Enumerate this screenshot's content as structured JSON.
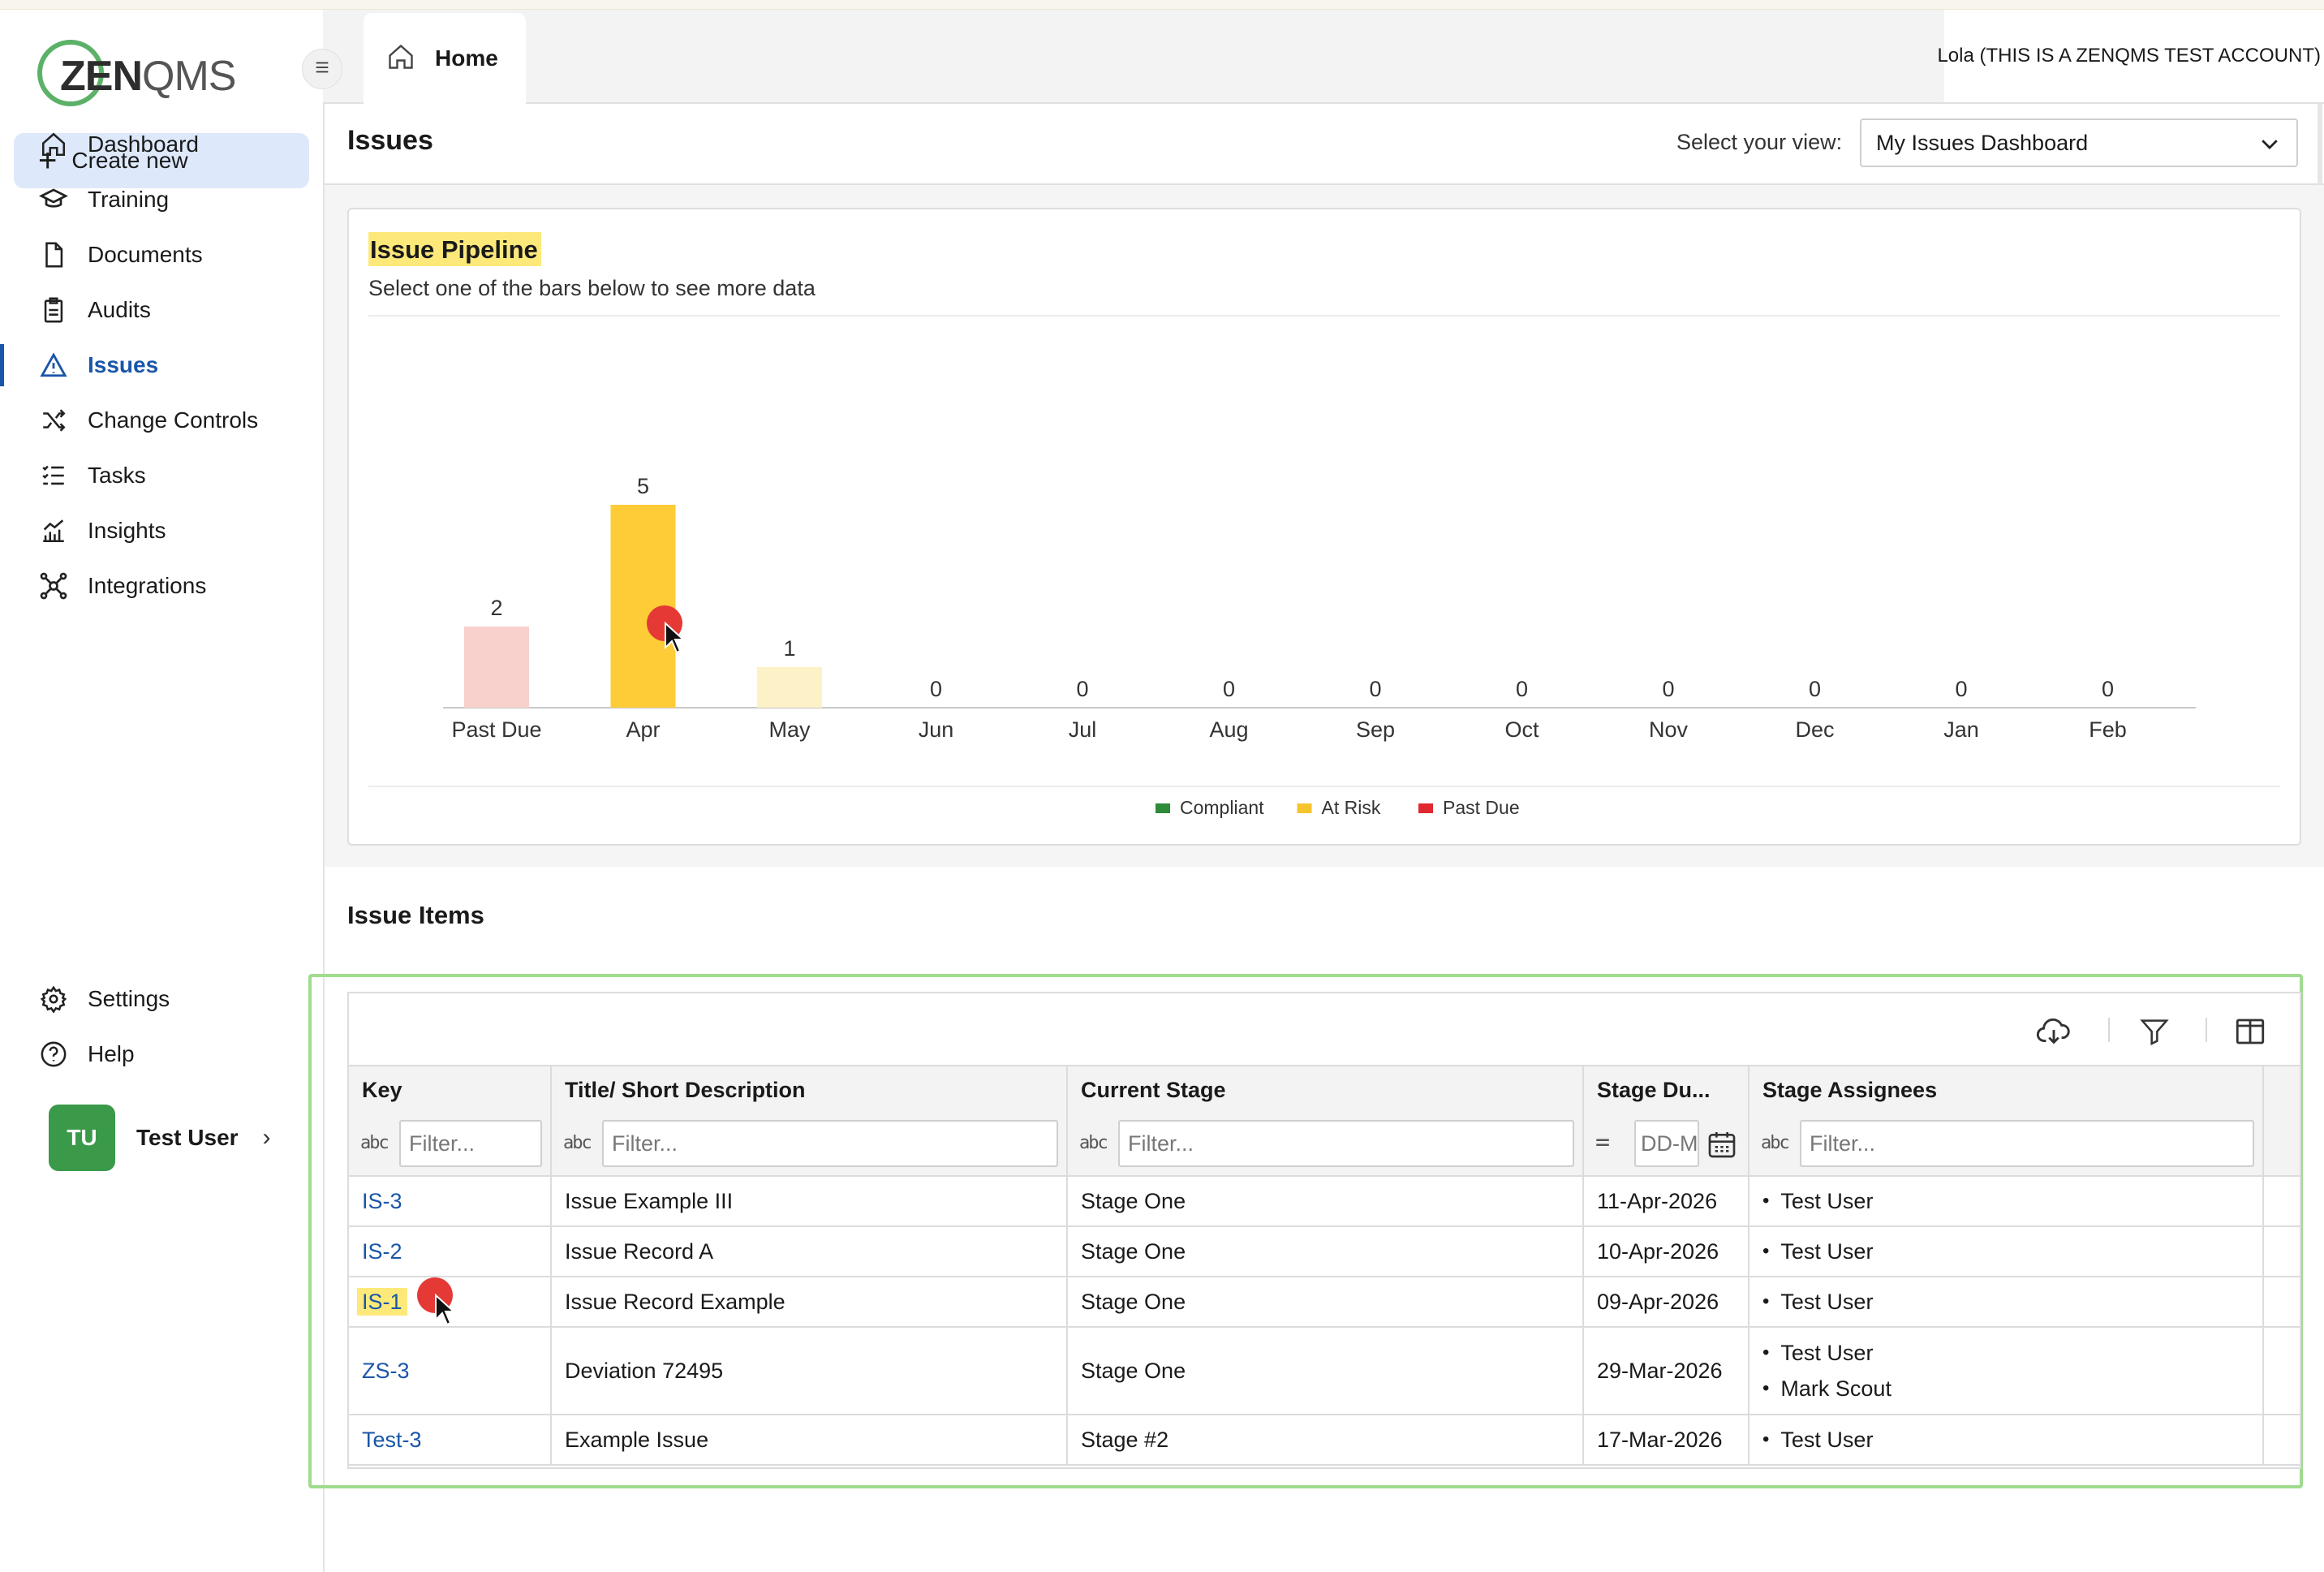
{
  "app": {
    "logo_text_1": "ZEN",
    "logo_text_2": "QMS",
    "account_label": "Lola (THIS IS A ZENQMS TEST ACCOUNT)"
  },
  "sidebar": {
    "create_new": "Create new",
    "items": [
      {
        "label": "Dashboard",
        "icon": "home-icon"
      },
      {
        "label": "Training",
        "icon": "graduation-cap-icon"
      },
      {
        "label": "Documents",
        "icon": "document-icon"
      },
      {
        "label": "Audits",
        "icon": "clipboard-icon"
      },
      {
        "label": "Issues",
        "icon": "warning-triangle-icon",
        "active": true
      },
      {
        "label": "Change Controls",
        "icon": "shuffle-icon"
      },
      {
        "label": "Tasks",
        "icon": "checklist-icon"
      },
      {
        "label": "Insights",
        "icon": "chart-icon"
      },
      {
        "label": "Integrations",
        "icon": "network-icon"
      }
    ],
    "bottom_items": [
      {
        "label": "Settings",
        "icon": "gear-icon"
      },
      {
        "label": "Help",
        "icon": "help-icon"
      }
    ],
    "user": {
      "initials": "TU",
      "name": "Test User"
    }
  },
  "tabs": [
    {
      "label": "Home",
      "icon": "home-icon"
    }
  ],
  "page": {
    "title": "Issues",
    "view_label": "Select your view:",
    "view_value": "My Issues Dashboard"
  },
  "pipeline": {
    "title": "Issue Pipeline",
    "subtitle": "Select one of the bars below to see more data"
  },
  "chart_data": {
    "type": "bar",
    "categories": [
      "Past Due",
      "Apr",
      "May",
      "Jun",
      "Jul",
      "Aug",
      "Sep",
      "Oct",
      "Nov",
      "Dec",
      "Jan",
      "Feb"
    ],
    "values": [
      2,
      5,
      1,
      0,
      0,
      0,
      0,
      0,
      0,
      0,
      0,
      0
    ],
    "bar_colors": [
      "#f8d0cc",
      "#fdcc36",
      "#fdf1c8",
      "#fdcc36",
      "#fdcc36",
      "#fdcc36",
      "#fdcc36",
      "#fdcc36",
      "#fdcc36",
      "#fdcc36",
      "#fdcc36",
      "#fdcc36"
    ],
    "legend": [
      {
        "name": "Compliant",
        "color": "#2e8b3a"
      },
      {
        "name": "At Risk",
        "color": "#f6c42c"
      },
      {
        "name": "Past Due",
        "color": "#e0282e"
      }
    ],
    "legend_position": "bottom",
    "ylim": [
      0,
      5
    ],
    "grid": false,
    "title": "",
    "xlabel": "",
    "ylabel": ""
  },
  "issue_items": {
    "title": "Issue Items",
    "toolbar": [
      "cloud-download-icon",
      "filter-icon",
      "columns-icon"
    ],
    "columns": [
      "Key",
      "Title/ Short Description",
      "Current Stage",
      "Stage Du...",
      "Stage Assignees"
    ],
    "filter_placeholder": "Filter...",
    "date_placeholder": "DD-M",
    "filter_type_text": "abc",
    "filter_type_eq": "=",
    "rows": [
      {
        "key": "IS-3",
        "title": "Issue Example III",
        "stage": "Stage One",
        "due": "11-Apr-2026",
        "assignees": [
          "Test User"
        ]
      },
      {
        "key": "IS-2",
        "title": "Issue Record A",
        "stage": "Stage One",
        "due": "10-Apr-2026",
        "assignees": [
          "Test User"
        ]
      },
      {
        "key": "IS-1",
        "title": "Issue Record Example",
        "stage": "Stage One",
        "due": "09-Apr-2026",
        "assignees": [
          "Test User"
        ]
      },
      {
        "key": "ZS-3",
        "title": "Deviation 72495",
        "stage": "Stage One",
        "due": "29-Mar-2026",
        "assignees": [
          "Test User",
          "Mark Scout"
        ]
      },
      {
        "key": "Test-3",
        "title": "Example Issue",
        "stage": "Stage #2",
        "due": "17-Mar-2026",
        "assignees": [
          "Test User"
        ]
      }
    ]
  }
}
